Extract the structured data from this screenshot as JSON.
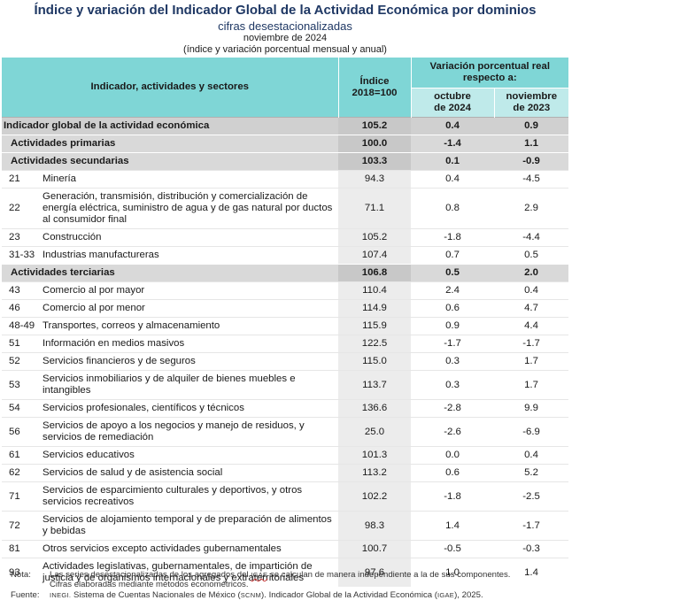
{
  "header": {
    "title": "Índice y variación del Indicador Global de la Actividad Económica por dominios",
    "subtitle": "cifras desestacionalizadas",
    "period": "noviembre de 2024",
    "units": "(índice y variación porcentual mensual y anual)"
  },
  "columns": {
    "indicator": "Indicador, actividades y sectores",
    "index_line1": "Índice",
    "index_line2": "2018=100",
    "variation": "Variación porcentual real respecto a:",
    "oct_line1": "octubre",
    "oct_line2": "de 2024",
    "nov_line1": "noviembre",
    "nov_line2": "de 2023"
  },
  "rows": [
    {
      "type": "tot",
      "code": "",
      "label": "Indicador global de la actividad económica",
      "index": "105.2",
      "oct": "0.4",
      "nov": "0.9"
    },
    {
      "type": "sec",
      "code": "",
      "label": "Actividades primarias",
      "index": "100.0",
      "oct": "-1.4",
      "nov": "1.1"
    },
    {
      "type": "sec",
      "code": "",
      "label": "Actividades secundarias",
      "index": "103.3",
      "oct": "0.1",
      "nov": "-0.9"
    },
    {
      "type": "det",
      "code": "21",
      "label": "Minería",
      "index": "94.3",
      "oct": "0.4",
      "nov": "-4.5"
    },
    {
      "type": "det",
      "code": "22",
      "label": "Generación, transmisión, distribución y comercialización de energía eléctrica, suministro de agua y de gas natural por ductos al consumidor final",
      "index": "71.1",
      "oct": "0.8",
      "nov": "2.9"
    },
    {
      "type": "det",
      "code": "23",
      "label": "Construcción",
      "index": "105.2",
      "oct": "-1.8",
      "nov": "-4.4"
    },
    {
      "type": "det",
      "code": "31-33",
      "label": "Industrias manufactureras",
      "index": "107.4",
      "oct": "0.7",
      "nov": "0.5"
    },
    {
      "type": "sec",
      "code": "",
      "label": "Actividades terciarias",
      "index": "106.8",
      "oct": "0.5",
      "nov": "2.0"
    },
    {
      "type": "det",
      "code": "43",
      "label": "Comercio al por mayor",
      "index": "110.4",
      "oct": "2.4",
      "nov": "0.4"
    },
    {
      "type": "det",
      "code": "46",
      "label": "Comercio al por menor",
      "index": "114.9",
      "oct": "0.6",
      "nov": "4.7"
    },
    {
      "type": "det",
      "code": "48-49",
      "label": "Transportes, correos y almacenamiento",
      "index": "115.9",
      "oct": "0.9",
      "nov": "4.4"
    },
    {
      "type": "det",
      "code": "51",
      "label": "Información en medios masivos",
      "index": "122.5",
      "oct": "-1.7",
      "nov": "-1.7"
    },
    {
      "type": "det",
      "code": "52",
      "label": "Servicios financieros y de seguros",
      "index": "115.0",
      "oct": "0.3",
      "nov": "1.7"
    },
    {
      "type": "det",
      "code": "53",
      "label": "Servicios inmobiliarios y de alquiler de bienes muebles e intangibles",
      "index": "113.7",
      "oct": "0.3",
      "nov": "1.7"
    },
    {
      "type": "det",
      "code": "54",
      "label": "Servicios profesionales, científicos y técnicos",
      "index": "136.6",
      "oct": "-2.8",
      "nov": "9.9"
    },
    {
      "type": "det",
      "code": "56",
      "label": "Servicios de apoyo a los negocios y manejo de residuos, y servicios de remediación",
      "index": "25.0",
      "oct": "-2.6",
      "nov": "-6.9"
    },
    {
      "type": "det",
      "code": "61",
      "label": "Servicios educativos",
      "index": "101.3",
      "oct": "0.0",
      "nov": "0.4"
    },
    {
      "type": "det",
      "code": "62",
      "label": "Servicios de salud y de asistencia social",
      "index": "113.2",
      "oct": "0.6",
      "nov": "5.2"
    },
    {
      "type": "det",
      "code": "71",
      "label": "Servicios de esparcimiento culturales y deportivos, y otros servicios recreativos",
      "index": "102.2",
      "oct": "-1.8",
      "nov": "-2.5"
    },
    {
      "type": "det",
      "code": "72",
      "label": "Servicios de alojamiento temporal y de preparación de alimentos y bebidas",
      "index": "98.3",
      "oct": "1.4",
      "nov": "-1.7"
    },
    {
      "type": "det",
      "code": "81",
      "label": "Otros servicios excepto actividades gubernamentales",
      "index": "100.7",
      "oct": "-0.5",
      "nov": "-0.3"
    },
    {
      "type": "det",
      "code": "93",
      "label": "Actividades legislativas, gubernamentales, de impartición de justicia y de organismos internacionales y extraterritoriales",
      "index": "97.6",
      "oct": "1.0",
      "nov": "1.4"
    }
  ],
  "notes": {
    "note_label": "Nota:",
    "note_line1_a": "Las series desestacionalizadas de los agregados del ",
    "note_line1_abbr": "IGAE",
    "note_line1_b": " se calculan de manera independiente a la de sus componentes.",
    "note_line2": "Cifras elaboradas mediante métodos econométricos.",
    "source_label": "Fuente:",
    "source_org": "INEGI.",
    "source_a": " Sistema de Cuentas Nacionales de México (",
    "source_abbr1": "SCNM",
    "source_b": "). Indicador Global de la Actividad Económica (",
    "source_abbr2": "IGAE",
    "source_c": "), 2025."
  }
}
